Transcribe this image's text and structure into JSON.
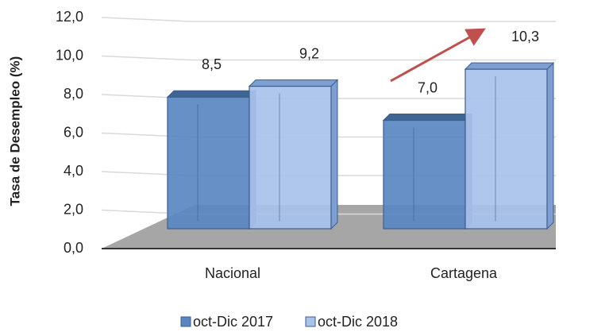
{
  "chart_data": {
    "type": "bar",
    "y_label": "Tasa de Desempleo  (%)",
    "categories": [
      "Nacional",
      "Cartagena"
    ],
    "series": [
      {
        "name": "oct-Dic 2017",
        "color": "#5a87c2",
        "values": [
          8.5,
          7.0
        ],
        "value_labels": [
          "8,5",
          "7,0"
        ]
      },
      {
        "name": "oct-Dic 2018",
        "color": "#a9c2ec",
        "values": [
          9.2,
          10.3
        ],
        "value_labels": [
          "9,2",
          "10,3"
        ]
      }
    ],
    "ylim": [
      0,
      12
    ],
    "yticks": [
      {
        "value": 0,
        "label": "0,0"
      },
      {
        "value": 2,
        "label": "2,0"
      },
      {
        "value": 4,
        "label": "4,0"
      },
      {
        "value": 6,
        "label": "6,0"
      },
      {
        "value": 8,
        "label": "8,0"
      },
      {
        "value": 10,
        "label": "10,0"
      },
      {
        "value": 12,
        "label": "12,0"
      }
    ],
    "grid": true
  }
}
